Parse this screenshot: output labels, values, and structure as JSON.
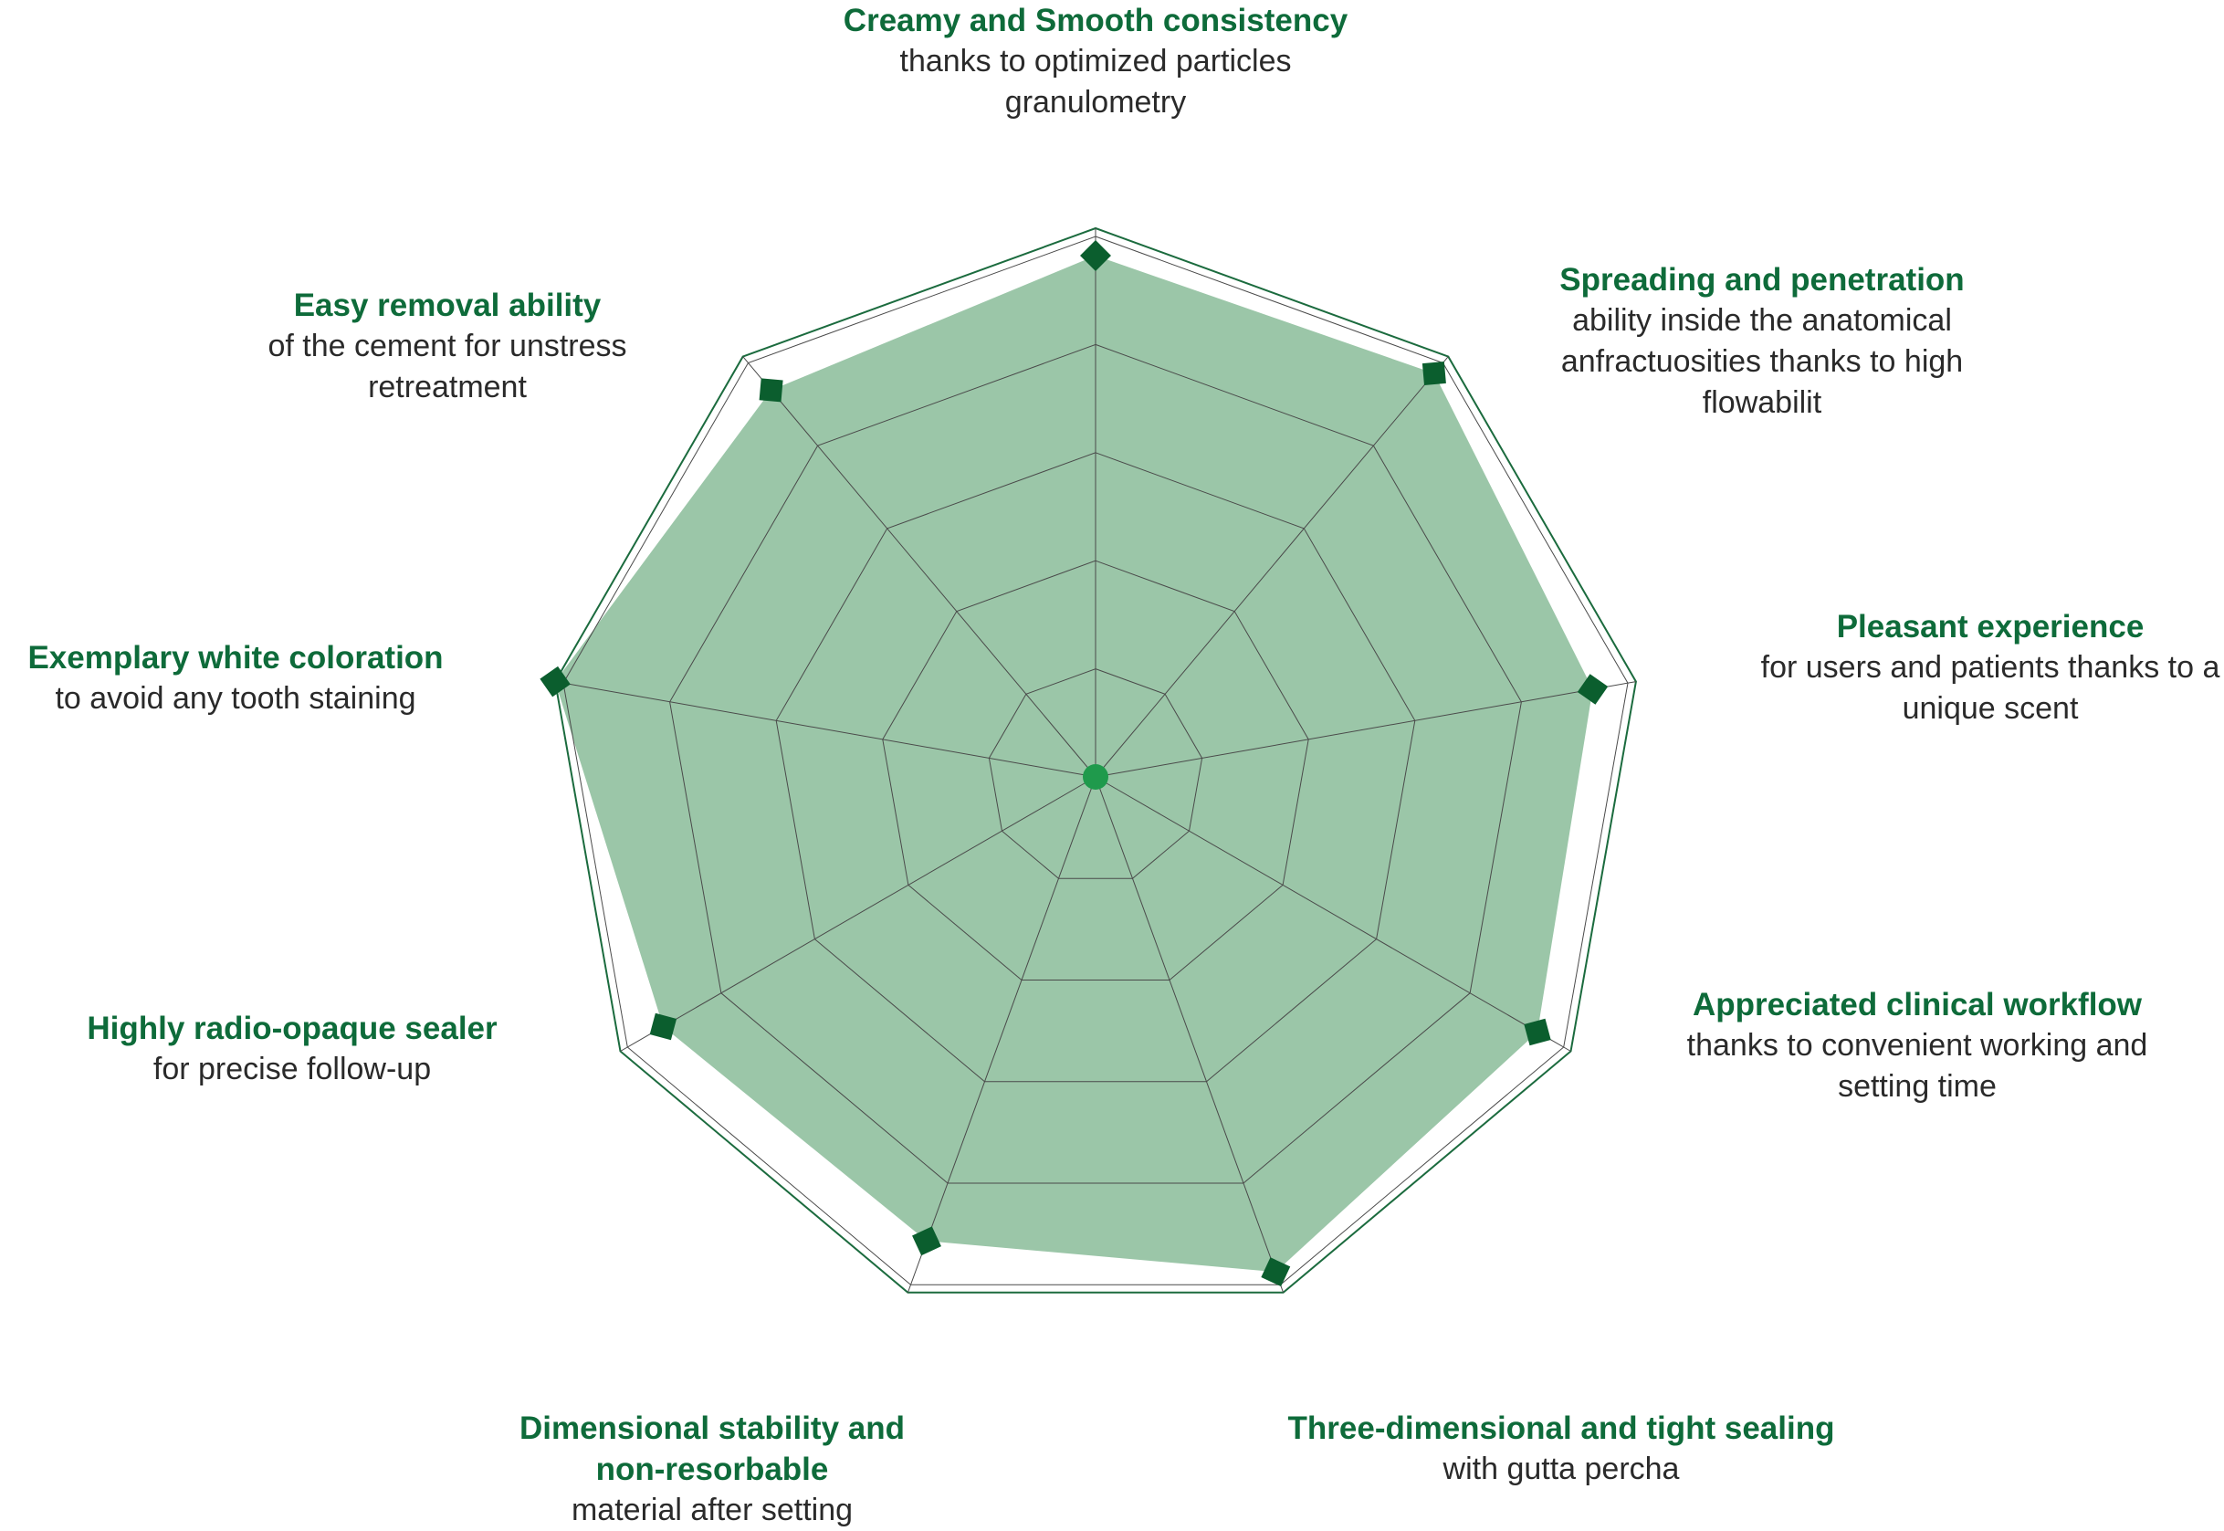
{
  "chart_data": {
    "type": "radar",
    "title": "",
    "rlim": [
      0,
      10
    ],
    "levels": 5,
    "grid": true,
    "colors": {
      "fill": "#9bc6a8",
      "outline": "#1b6b3e",
      "marker": "#0b5e2e",
      "grid": "#4a4a4a",
      "title_text": "#0e6b3a",
      "body_text": "#2a2a2a",
      "center": "#1f9a4c"
    },
    "axes": [
      {
        "title": "Creamy and Smooth consistency",
        "desc": "thanks to optimized particles granulometry",
        "desc_lines": [
          "thanks to optimized particles",
          "granulometry"
        ],
        "value": 9.5
      },
      {
        "title": "Spreading and penetration",
        "desc": "ability inside the anatomical anfractuosities thanks to high flowabilit",
        "desc_lines": [
          "ability inside the anatomical",
          "anfractuosities thanks to high",
          "flowabilit"
        ],
        "value": 9.6
      },
      {
        "title": "Pleasant experience",
        "desc": "for users and patients thanks to a unique scent",
        "desc_lines": [
          "for users and patients thanks to a",
          "unique scent"
        ],
        "value": 9.2
      },
      {
        "title": "Appreciated clinical workflow",
        "desc": "thanks to convenient working and setting time",
        "desc_lines": [
          "thanks to convenient working and",
          "setting time"
        ],
        "value": 9.3
      },
      {
        "title": "Three-dimensional and tight sealing",
        "desc": "with gutta percha",
        "desc_lines": [
          "with gutta percha"
        ],
        "value": 9.6
      },
      {
        "title": "Dimensional stability and non-resorbable",
        "title_lines": [
          "Dimensional stability and",
          "non-resorbable"
        ],
        "desc": "material after setting",
        "desc_lines": [
          "material after setting"
        ],
        "value": 9.0
      },
      {
        "title": "Highly radio-opaque sealer",
        "desc": "for precise follow-up",
        "desc_lines": [
          "for precise follow-up"
        ],
        "value": 9.1
      },
      {
        "title": "Exemplary white coloration",
        "desc": "to avoid any tooth staining",
        "desc_lines": [
          "to avoid any tooth staining"
        ],
        "value": 10.0
      },
      {
        "title": "Easy removal ability",
        "desc": "of the cement for unstress retreatment",
        "desc_lines": [
          "of the cement for unstress",
          "retreatment"
        ],
        "value": 9.2
      }
    ]
  }
}
